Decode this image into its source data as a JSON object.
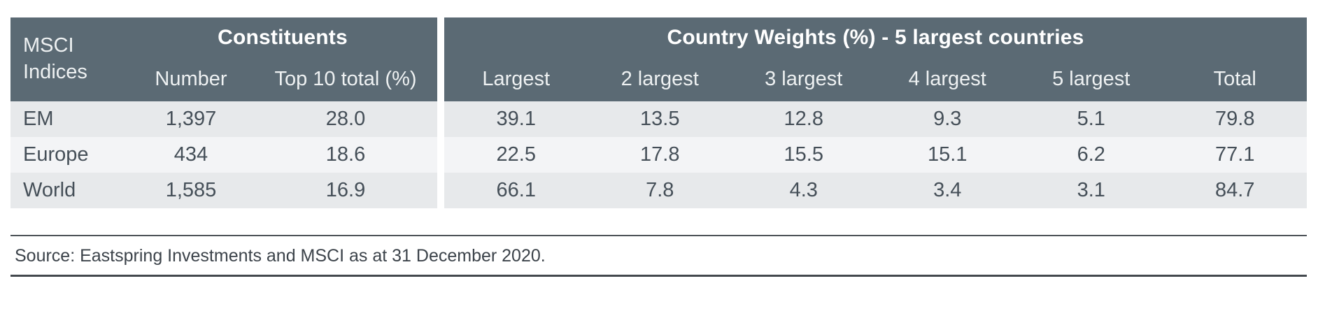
{
  "colors": {
    "header_bg": "#5b6a74",
    "row_stripe_dark": "#e7e9eb",
    "row_stripe_light": "#f3f4f6",
    "header_text": "#ffffff",
    "body_text": "#454f58",
    "rule": "#43484d"
  },
  "table": {
    "index_header": "MSCI\nIndices",
    "groups": [
      {
        "label": "Constituents",
        "columns": [
          "Number",
          "Top 10 total (%)"
        ]
      },
      {
        "label": "Country Weights (%) - 5 largest countries",
        "columns": [
          "Largest",
          "2 largest",
          "3 largest",
          "4 largest",
          "5 largest",
          "Total"
        ]
      }
    ],
    "rows": [
      {
        "index": "EM",
        "values": [
          "1,397",
          "28.0",
          "39.1",
          "13.5",
          "12.8",
          "9.3",
          "5.1",
          "79.8"
        ]
      },
      {
        "index": "Europe",
        "values": [
          "434",
          "18.6",
          "22.5",
          "17.8",
          "15.5",
          "15.1",
          "6.2",
          "77.1"
        ]
      },
      {
        "index": "World",
        "values": [
          "1,585",
          "16.9",
          "66.1",
          "7.8",
          "4.3",
          "3.4",
          "3.1",
          "84.7"
        ]
      }
    ]
  },
  "source": "Source: Eastspring Investments and MSCI as at 31 December 2020.",
  "chart_data": {
    "type": "table",
    "title": "Country Weights (%) - 5 largest countries",
    "columns": [
      "MSCI Indices",
      "Constituents - Number",
      "Constituents - Top 10 total (%)",
      "Largest",
      "2 largest",
      "3 largest",
      "4 largest",
      "5 largest",
      "Total"
    ],
    "rows": [
      [
        "EM",
        1397,
        28.0,
        39.1,
        13.5,
        12.8,
        9.3,
        5.1,
        79.8
      ],
      [
        "Europe",
        434,
        18.6,
        22.5,
        17.8,
        15.5,
        15.1,
        6.2,
        77.1
      ],
      [
        "World",
        1585,
        16.9,
        66.1,
        7.8,
        4.3,
        3.4,
        3.1,
        84.7
      ]
    ],
    "source": "Source: Eastspring Investments and MSCI as at 31 December 2020."
  }
}
